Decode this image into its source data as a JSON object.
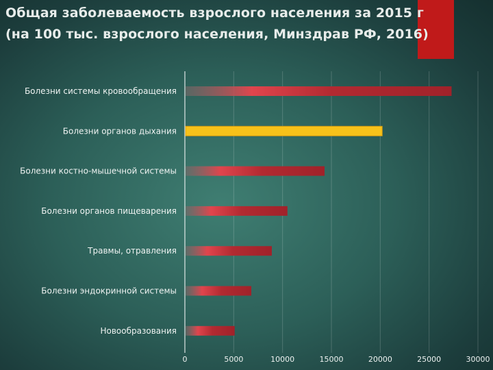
{
  "header": {
    "title_line1": "Общая заболеваемость взрослого населения за 2015 г",
    "title_line2": "(на 100 тыс. взрослого населения, Минздрав РФ, 2016)"
  },
  "colors": {
    "accent": "#c01a1a",
    "bar_red": "#b42a32",
    "bar_highlight": "#f7c21a"
  },
  "chart_data": {
    "type": "bar",
    "orientation": "horizontal",
    "title": "Общая заболеваемость взрослого населения за 2015 г (на 100 тыс. взрослого населения, Минздрав РФ, 2016)",
    "categories": [
      "Болезни системы кровообращения",
      "Болезни органов дыхания",
      "Болезни костно-мышечной системы",
      "Болезни органов пищеварения",
      "Травмы, отравления",
      "Болезни эндокринной системы",
      "Новообразования"
    ],
    "values": [
      27300,
      20200,
      14300,
      10500,
      8900,
      6800,
      5100
    ],
    "highlight_index": 1,
    "xlim": [
      0,
      30000
    ],
    "xticks": [
      "0",
      "5000",
      "10000",
      "15000",
      "20000",
      "25000",
      "30000"
    ],
    "grid": true
  }
}
